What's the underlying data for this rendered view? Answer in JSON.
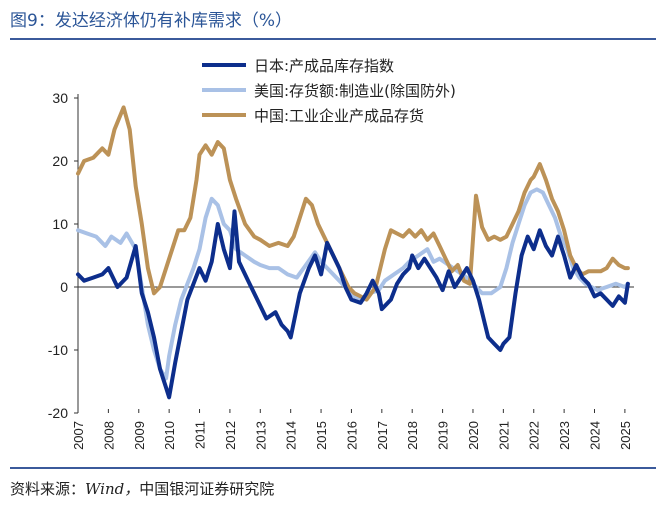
{
  "title": "图9：发达经济体仍有补库需求（%）",
  "source_label": "资料来源：",
  "source_latin": "Wind，",
  "source_org": "中国银河证券研究院",
  "chart_data": {
    "type": "line",
    "ylim": [
      -20,
      30
    ],
    "yticks": [
      "30",
      "20",
      "10",
      "0",
      "-10",
      "-20"
    ],
    "ytick_values": [
      30,
      20,
      10,
      0,
      -10,
      -20
    ],
    "xlim": [
      2007,
      2025.3
    ],
    "xticks": [
      "2007",
      "2008",
      "2009",
      "2010",
      "2011",
      "2012",
      "2013",
      "2014",
      "2015",
      "2016",
      "2017",
      "2018",
      "2019",
      "2020",
      "2021",
      "2022",
      "2023",
      "2024",
      "2025"
    ],
    "legend_position": "top-center",
    "series": [
      {
        "name": "日本:产成品库存指数",
        "color": "#0d2e8c",
        "points": [
          [
            2007.0,
            2.0
          ],
          [
            2007.2,
            1.0
          ],
          [
            2007.5,
            1.5
          ],
          [
            2007.8,
            2.0
          ],
          [
            2008.0,
            3.0
          ],
          [
            2008.3,
            0.0
          ],
          [
            2008.6,
            1.5
          ],
          [
            2008.9,
            6.5
          ],
          [
            2009.1,
            -1.0
          ],
          [
            2009.3,
            -4.0
          ],
          [
            2009.5,
            -8.0
          ],
          [
            2009.7,
            -13.0
          ],
          [
            2009.9,
            -16.0
          ],
          [
            2010.0,
            -17.5
          ],
          [
            2010.2,
            -12.0
          ],
          [
            2010.4,
            -7.0
          ],
          [
            2010.6,
            -2.0
          ],
          [
            2010.8,
            0.5
          ],
          [
            2011.0,
            3.0
          ],
          [
            2011.2,
            1.0
          ],
          [
            2011.4,
            4.0
          ],
          [
            2011.6,
            10.0
          ],
          [
            2011.8,
            6.0
          ],
          [
            2012.0,
            3.0
          ],
          [
            2012.15,
            12.0
          ],
          [
            2012.3,
            4.0
          ],
          [
            2012.6,
            1.0
          ],
          [
            2012.9,
            -2.0
          ],
          [
            2013.2,
            -5.0
          ],
          [
            2013.5,
            -4.0
          ],
          [
            2013.7,
            -6.0
          ],
          [
            2013.9,
            -7.0
          ],
          [
            2014.0,
            -8.0
          ],
          [
            2014.3,
            -1.0
          ],
          [
            2014.6,
            3.0
          ],
          [
            2014.8,
            5.0
          ],
          [
            2015.0,
            2.0
          ],
          [
            2015.2,
            7.0
          ],
          [
            2015.4,
            5.0
          ],
          [
            2015.6,
            3.0
          ],
          [
            2015.8,
            0.0
          ],
          [
            2016.0,
            -2.0
          ],
          [
            2016.3,
            -2.5
          ],
          [
            2016.5,
            -1.0
          ],
          [
            2016.7,
            1.0
          ],
          [
            2016.9,
            -1.0
          ],
          [
            2017.0,
            -3.5
          ],
          [
            2017.3,
            -2.0
          ],
          [
            2017.5,
            0.5
          ],
          [
            2017.7,
            2.0
          ],
          [
            2017.9,
            3.0
          ],
          [
            2018.0,
            5.0
          ],
          [
            2018.2,
            3.0
          ],
          [
            2018.4,
            4.5
          ],
          [
            2018.6,
            3.0
          ],
          [
            2018.8,
            1.5
          ],
          [
            2019.0,
            -0.5
          ],
          [
            2019.2,
            2.5
          ],
          [
            2019.4,
            0.0
          ],
          [
            2019.6,
            1.5
          ],
          [
            2019.8,
            3.0
          ],
          [
            2020.0,
            1.0
          ],
          [
            2020.2,
            -2.0
          ],
          [
            2020.4,
            -6.0
          ],
          [
            2020.5,
            -8.0
          ],
          [
            2020.7,
            -9.0
          ],
          [
            2020.9,
            -10.0
          ],
          [
            2021.0,
            -9.0
          ],
          [
            2021.2,
            -8.0
          ],
          [
            2021.4,
            -1.0
          ],
          [
            2021.6,
            5.0
          ],
          [
            2021.8,
            8.0
          ],
          [
            2022.0,
            6.0
          ],
          [
            2022.2,
            9.0
          ],
          [
            2022.4,
            6.5
          ],
          [
            2022.6,
            5.0
          ],
          [
            2022.8,
            8.0
          ],
          [
            2023.0,
            5.0
          ],
          [
            2023.2,
            1.5
          ],
          [
            2023.4,
            3.5
          ],
          [
            2023.6,
            1.5
          ],
          [
            2023.8,
            0.5
          ],
          [
            2024.0,
            -1.5
          ],
          [
            2024.2,
            -1.0
          ],
          [
            2024.4,
            -2.0
          ],
          [
            2024.6,
            -3.0
          ],
          [
            2024.8,
            -1.5
          ],
          [
            2025.0,
            -2.5
          ],
          [
            2025.1,
            0.5
          ]
        ]
      },
      {
        "name": "美国:存货额:制造业(除国防外)",
        "color": "#a9c1e6",
        "points": [
          [
            2007.0,
            9.0
          ],
          [
            2007.3,
            8.5
          ],
          [
            2007.6,
            8.0
          ],
          [
            2007.9,
            6.5
          ],
          [
            2008.1,
            8.0
          ],
          [
            2008.4,
            7.0
          ],
          [
            2008.6,
            8.5
          ],
          [
            2008.9,
            6.0
          ],
          [
            2009.1,
            0.0
          ],
          [
            2009.3,
            -6.0
          ],
          [
            2009.5,
            -10.0
          ],
          [
            2009.7,
            -13.0
          ],
          [
            2009.9,
            -14.5
          ],
          [
            2010.0,
            -11.0
          ],
          [
            2010.2,
            -6.0
          ],
          [
            2010.4,
            -2.0
          ],
          [
            2010.6,
            0.5
          ],
          [
            2010.8,
            3.0
          ],
          [
            2011.0,
            6.0
          ],
          [
            2011.2,
            11.0
          ],
          [
            2011.4,
            14.0
          ],
          [
            2011.6,
            13.0
          ],
          [
            2011.8,
            10.0
          ],
          [
            2012.0,
            9.0
          ],
          [
            2012.2,
            6.0
          ],
          [
            2012.5,
            5.0
          ],
          [
            2012.8,
            4.0
          ],
          [
            2013.0,
            3.5
          ],
          [
            2013.3,
            3.0
          ],
          [
            2013.6,
            3.0
          ],
          [
            2013.9,
            2.0
          ],
          [
            2014.2,
            1.5
          ],
          [
            2014.5,
            3.5
          ],
          [
            2014.8,
            5.5
          ],
          [
            2015.0,
            4.0
          ],
          [
            2015.3,
            2.5
          ],
          [
            2015.6,
            1.0
          ],
          [
            2015.9,
            -0.5
          ],
          [
            2016.1,
            -1.5
          ],
          [
            2016.4,
            -2.0
          ],
          [
            2016.6,
            -1.0
          ],
          [
            2016.9,
            -0.5
          ],
          [
            2017.1,
            1.0
          ],
          [
            2017.4,
            2.0
          ],
          [
            2017.7,
            3.0
          ],
          [
            2017.9,
            4.0
          ],
          [
            2018.2,
            5.0
          ],
          [
            2018.5,
            6.0
          ],
          [
            2018.7,
            4.0
          ],
          [
            2018.9,
            4.5
          ],
          [
            2019.2,
            3.5
          ],
          [
            2019.5,
            2.5
          ],
          [
            2019.8,
            1.5
          ],
          [
            2020.0,
            0.5
          ],
          [
            2020.3,
            -1.0
          ],
          [
            2020.6,
            -1.0
          ],
          [
            2020.9,
            0.0
          ],
          [
            2021.1,
            3.0
          ],
          [
            2021.3,
            7.0
          ],
          [
            2021.5,
            10.0
          ],
          [
            2021.7,
            13.0
          ],
          [
            2021.9,
            15.0
          ],
          [
            2022.1,
            15.5
          ],
          [
            2022.3,
            15.0
          ],
          [
            2022.5,
            13.0
          ],
          [
            2022.7,
            11.0
          ],
          [
            2022.9,
            8.0
          ],
          [
            2023.1,
            6.0
          ],
          [
            2023.3,
            3.0
          ],
          [
            2023.5,
            1.5
          ],
          [
            2023.7,
            0.5
          ],
          [
            2023.9,
            0.0
          ],
          [
            2024.1,
            -0.5
          ],
          [
            2024.4,
            0.0
          ],
          [
            2024.7,
            0.5
          ],
          [
            2025.0,
            0.0
          ],
          [
            2025.1,
            0.5
          ]
        ]
      },
      {
        "name": "中国:工业企业产成品存货",
        "color": "#bc9257",
        "points": [
          [
            2007.0,
            18.0
          ],
          [
            2007.2,
            20.0
          ],
          [
            2007.5,
            20.5
          ],
          [
            2007.8,
            22.0
          ],
          [
            2008.0,
            21.0
          ],
          [
            2008.2,
            25.0
          ],
          [
            2008.5,
            28.5
          ],
          [
            2008.7,
            25.0
          ],
          [
            2008.9,
            16.0
          ],
          [
            2009.1,
            10.0
          ],
          [
            2009.3,
            3.0
          ],
          [
            2009.5,
            -1.0
          ],
          [
            2009.7,
            0.0
          ],
          [
            2009.9,
            3.0
          ],
          [
            2010.1,
            6.0
          ],
          [
            2010.3,
            9.0
          ],
          [
            2010.5,
            9.0
          ],
          [
            2010.7,
            11.0
          ],
          [
            2010.9,
            17.0
          ],
          [
            2011.0,
            21.0
          ],
          [
            2011.2,
            22.5
          ],
          [
            2011.4,
            21.0
          ],
          [
            2011.6,
            23.0
          ],
          [
            2011.8,
            22.0
          ],
          [
            2012.0,
            17.0
          ],
          [
            2012.2,
            14.0
          ],
          [
            2012.5,
            10.0
          ],
          [
            2012.8,
            8.0
          ],
          [
            2013.0,
            7.5
          ],
          [
            2013.3,
            6.5
          ],
          [
            2013.6,
            7.0
          ],
          [
            2013.9,
            6.5
          ],
          [
            2014.1,
            8.0
          ],
          [
            2014.3,
            11.0
          ],
          [
            2014.5,
            14.0
          ],
          [
            2014.7,
            13.0
          ],
          [
            2014.9,
            10.0
          ],
          [
            2015.1,
            8.0
          ],
          [
            2015.3,
            6.0
          ],
          [
            2015.6,
            3.0
          ],
          [
            2015.9,
            0.0
          ],
          [
            2016.1,
            -1.0
          ],
          [
            2016.3,
            -1.5
          ],
          [
            2016.5,
            -2.0
          ],
          [
            2016.8,
            0.0
          ],
          [
            2016.9,
            2.0
          ],
          [
            2017.1,
            6.0
          ],
          [
            2017.3,
            9.0
          ],
          [
            2017.5,
            8.5
          ],
          [
            2017.7,
            8.0
          ],
          [
            2017.9,
            9.0
          ],
          [
            2018.1,
            8.0
          ],
          [
            2018.3,
            9.0
          ],
          [
            2018.5,
            7.5
          ],
          [
            2018.7,
            8.5
          ],
          [
            2018.9,
            6.5
          ],
          [
            2019.1,
            4.5
          ],
          [
            2019.3,
            2.5
          ],
          [
            2019.5,
            3.5
          ],
          [
            2019.7,
            1.0
          ],
          [
            2019.9,
            0.5
          ],
          [
            2020.1,
            14.5
          ],
          [
            2020.3,
            9.5
          ],
          [
            2020.5,
            7.5
          ],
          [
            2020.7,
            8.0
          ],
          [
            2020.9,
            7.5
          ],
          [
            2021.1,
            8.0
          ],
          [
            2021.3,
            10.0
          ],
          [
            2021.5,
            12.0
          ],
          [
            2021.7,
            15.0
          ],
          [
            2021.9,
            17.0
          ],
          [
            2022.0,
            17.5
          ],
          [
            2022.2,
            19.5
          ],
          [
            2022.4,
            17.0
          ],
          [
            2022.6,
            14.0
          ],
          [
            2022.8,
            12.0
          ],
          [
            2023.0,
            9.0
          ],
          [
            2023.2,
            5.0
          ],
          [
            2023.4,
            3.0
          ],
          [
            2023.6,
            2.0
          ],
          [
            2023.8,
            2.5
          ],
          [
            2024.0,
            2.5
          ],
          [
            2024.2,
            2.5
          ],
          [
            2024.4,
            3.0
          ],
          [
            2024.6,
            4.5
          ],
          [
            2024.8,
            3.5
          ],
          [
            2025.0,
            3.0
          ],
          [
            2025.1,
            3.0
          ]
        ]
      }
    ]
  }
}
